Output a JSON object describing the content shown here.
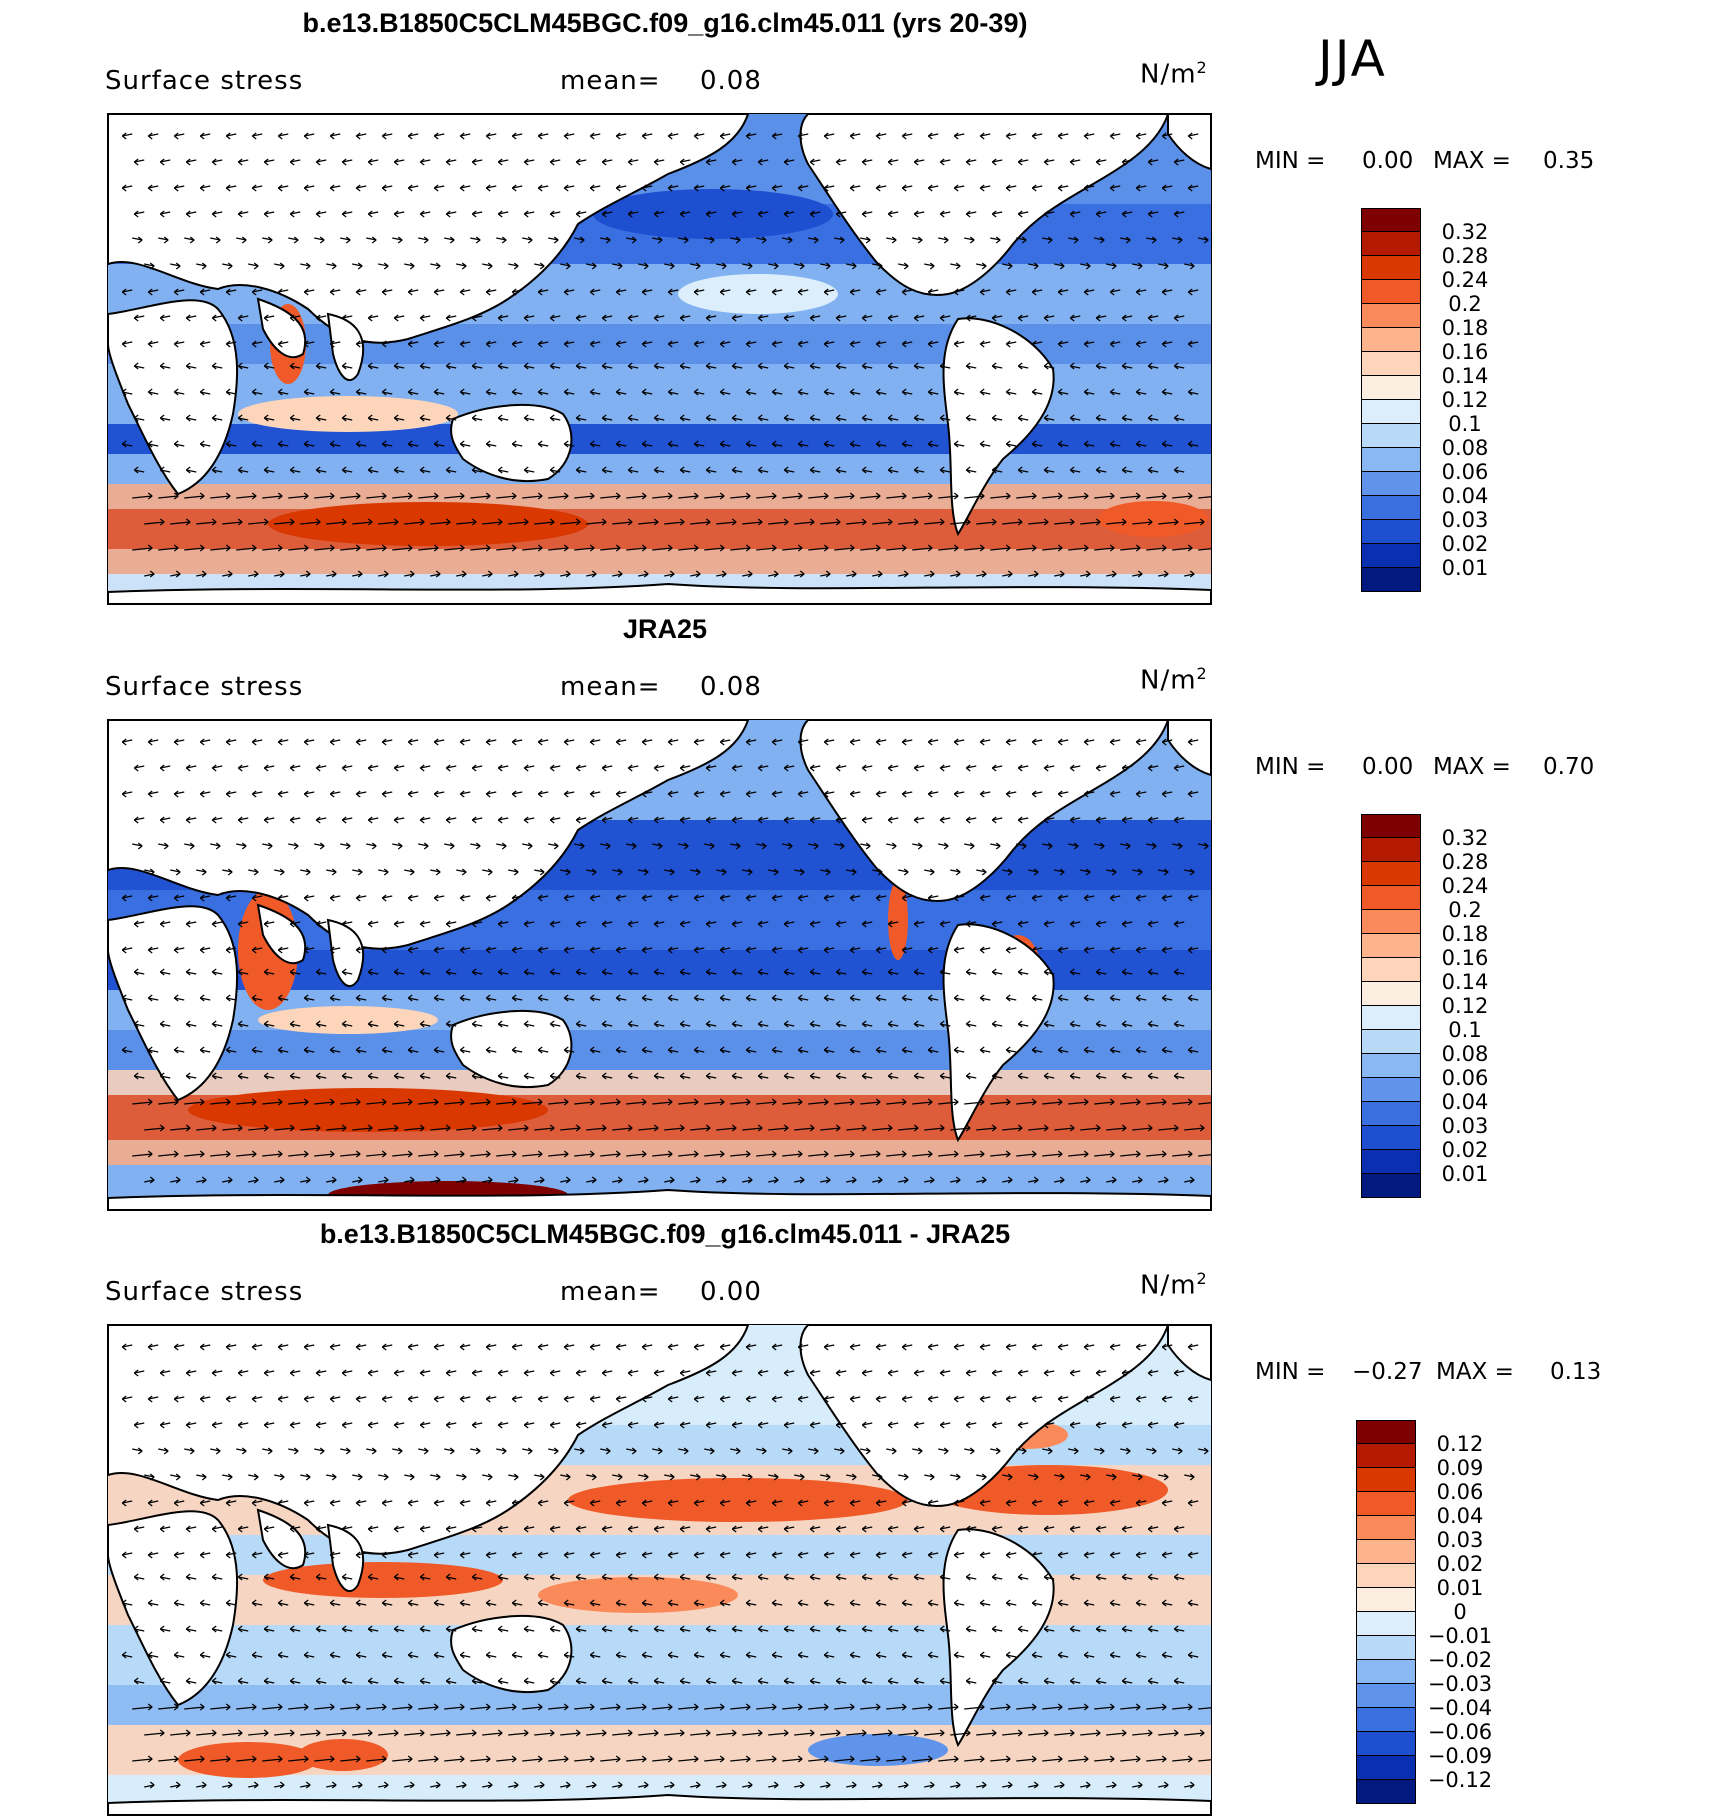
{
  "season": "JJA",
  "panels": [
    {
      "title": "b.e13.B1850C5CLM45BGC.f09_g16.clm45.011 (yrs 20-39)",
      "variable": "Surface stress",
      "mean_label": "mean=",
      "mean_value": "0.08",
      "units": "N/m",
      "units_sup": "2",
      "min_label": "MIN =",
      "min_value": "0.00",
      "max_label": "MAX =",
      "max_value": "0.35",
      "colorbar": {
        "ticks": [
          "0.32",
          "0.28",
          "0.24",
          "0.2",
          "0.18",
          "0.16",
          "0.14",
          "0.12",
          "0.1",
          "0.08",
          "0.06",
          "0.04",
          "0.03",
          "0.02",
          "0.01"
        ],
        "colors": [
          "#7f0000",
          "#b31a00",
          "#d93800",
          "#f05a28",
          "#fb8a5a",
          "#fdb38c",
          "#fdd5bb",
          "#fdeee2",
          "#dceefb",
          "#b8d9f8",
          "#8ab8f2",
          "#5f94ea",
          "#3a6fe0",
          "#1e4fd0",
          "#0a2fb0",
          "#021a80"
        ]
      }
    },
    {
      "title": "JRA25",
      "variable": "Surface stress",
      "mean_label": "mean=",
      "mean_value": "0.08",
      "units": "N/m",
      "units_sup": "2",
      "min_label": "MIN =",
      "min_value": "0.00",
      "max_label": "MAX =",
      "max_value": "0.70",
      "colorbar": {
        "ticks": [
          "0.32",
          "0.28",
          "0.24",
          "0.2",
          "0.18",
          "0.16",
          "0.14",
          "0.12",
          "0.1",
          "0.08",
          "0.06",
          "0.04",
          "0.03",
          "0.02",
          "0.01"
        ],
        "colors": [
          "#7f0000",
          "#b31a00",
          "#d93800",
          "#f05a28",
          "#fb8a5a",
          "#fdb38c",
          "#fdd5bb",
          "#fdeee2",
          "#dceefb",
          "#b8d9f8",
          "#8ab8f2",
          "#5f94ea",
          "#3a6fe0",
          "#1e4fd0",
          "#0a2fb0",
          "#021a80"
        ]
      }
    },
    {
      "title": "b.e13.B1850C5CLM45BGC.f09_g16.clm45.011 - JRA25",
      "variable": "Surface stress",
      "mean_label": "mean=",
      "mean_value": "0.00",
      "units": "N/m",
      "units_sup": "2",
      "min_label": "MIN =",
      "min_value": "−0.27",
      "max_label": "MAX =",
      "max_value": "0.13",
      "colorbar": {
        "ticks": [
          "0.12",
          "0.09",
          "0.06",
          "0.04",
          "0.03",
          "0.02",
          "0.01",
          "0",
          "−0.01",
          "−0.02",
          "−0.03",
          "−0.04",
          "−0.06",
          "−0.09",
          "−0.12"
        ],
        "colors": [
          "#7f0000",
          "#b31a00",
          "#d93800",
          "#f05a28",
          "#fb8a5a",
          "#fdb38c",
          "#fdd5bb",
          "#fdeee2",
          "#dceefb",
          "#b8d9f8",
          "#8ab8f2",
          "#5f94ea",
          "#3a6fe0",
          "#1e4fd0",
          "#0a2fb0",
          "#021a80"
        ]
      }
    }
  ],
  "chart_data": [
    {
      "type": "heatmap",
      "title": "b.e13.B1850C5CLM45BGC.f09_g16.clm45.011 (yrs 20-39)",
      "variable": "Surface stress",
      "units": "N/m2",
      "season": "JJA",
      "mean": 0.08,
      "min": 0.0,
      "max": 0.35,
      "levels": [
        0.01,
        0.02,
        0.03,
        0.04,
        0.06,
        0.08,
        0.1,
        0.12,
        0.14,
        0.16,
        0.18,
        0.2,
        0.24,
        0.28,
        0.32
      ],
      "map": "global, Pacific-centred (0°E to 360°E)",
      "overlay": "wind stress vectors"
    },
    {
      "type": "heatmap",
      "title": "JRA25",
      "variable": "Surface stress",
      "units": "N/m2",
      "season": "JJA",
      "mean": 0.08,
      "min": 0.0,
      "max": 0.7,
      "levels": [
        0.01,
        0.02,
        0.03,
        0.04,
        0.06,
        0.08,
        0.1,
        0.12,
        0.14,
        0.16,
        0.18,
        0.2,
        0.24,
        0.28,
        0.32
      ],
      "map": "global, Pacific-centred (0°E to 360°E)",
      "overlay": "wind stress vectors"
    },
    {
      "type": "heatmap",
      "title": "b.e13.B1850C5CLM45BGC.f09_g16.clm45.011 - JRA25",
      "variable": "Surface stress",
      "units": "N/m2",
      "season": "JJA",
      "mean": 0.0,
      "min": -0.27,
      "max": 0.13,
      "levels": [
        -0.12,
        -0.09,
        -0.06,
        -0.04,
        -0.03,
        -0.02,
        -0.01,
        0,
        0.01,
        0.02,
        0.03,
        0.04,
        0.06,
        0.09,
        0.12
      ],
      "map": "global, Pacific-centred (0°E to 360°E)",
      "overlay": "wind stress difference vectors"
    }
  ]
}
